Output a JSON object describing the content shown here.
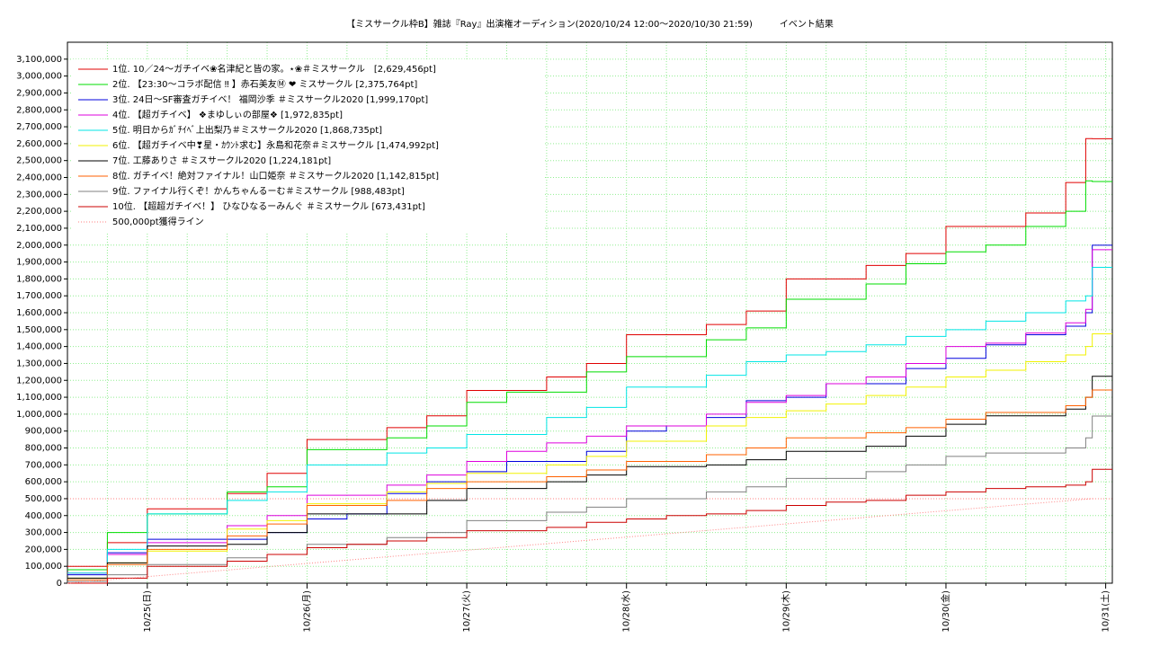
{
  "chart_data": {
    "type": "step",
    "title": "【ミスサークル枠B】雑誌『Ray』出演権オーディション(2020/10/24 12:00〜2020/10/30 21:59)　　　イベント結果",
    "x": [
      "2020-10-24 12:00",
      "2020-10-24 18:00",
      "2020-10-25 00:00",
      "2020-10-25 06:00",
      "2020-10-25 12:00",
      "2020-10-25 18:00",
      "2020-10-26 00:00",
      "2020-10-26 06:00",
      "2020-10-26 12:00",
      "2020-10-26 18:00",
      "2020-10-27 00:00",
      "2020-10-27 06:00",
      "2020-10-27 12:00",
      "2020-10-27 18:00",
      "2020-10-28 00:00",
      "2020-10-28 06:00",
      "2020-10-28 12:00",
      "2020-10-28 18:00",
      "2020-10-29 00:00",
      "2020-10-29 06:00",
      "2020-10-29 12:00",
      "2020-10-29 18:00",
      "2020-10-30 00:00",
      "2020-10-30 06:00",
      "2020-10-30 12:00",
      "2020-10-30 18:00",
      "2020-10-30 21:00",
      "2020-10-30 21:59"
    ],
    "xlim": [
      "2020-10-24 12:00",
      "2020-10-31 01:00"
    ],
    "xticks": [
      {
        "value": "2020-10-25 00:00",
        "label": "10/25(日)"
      },
      {
        "value": "2020-10-26 00:00",
        "label": "10/26(月)"
      },
      {
        "value": "2020-10-27 00:00",
        "label": "10/27(火)"
      },
      {
        "value": "2020-10-28 00:00",
        "label": "10/28(水)"
      },
      {
        "value": "2020-10-29 00:00",
        "label": "10/29(木)"
      },
      {
        "value": "2020-10-30 00:00",
        "label": "10/30(金)"
      },
      {
        "value": "2020-10-31 00:00",
        "label": "10/31(土)"
      }
    ],
    "x_minor_ticks": [
      "2020-10-24 18:00",
      "2020-10-25 06:00",
      "2020-10-25 12:00",
      "2020-10-25 18:00",
      "2020-10-26 06:00",
      "2020-10-26 12:00",
      "2020-10-26 18:00",
      "2020-10-27 06:00",
      "2020-10-27 12:00",
      "2020-10-27 18:00",
      "2020-10-28 06:00",
      "2020-10-28 12:00",
      "2020-10-28 18:00",
      "2020-10-29 06:00",
      "2020-10-29 12:00",
      "2020-10-29 18:00",
      "2020-10-30 06:00",
      "2020-10-30 12:00",
      "2020-10-30 18:00"
    ],
    "ylim": [
      0,
      3200000
    ],
    "yticks": [
      0,
      {
        "value": 100000,
        "label": "100,000"
      },
      {
        "value": 200000,
        "label": "200,000"
      },
      {
        "value": 300000,
        "label": "300,000"
      },
      {
        "value": 400000,
        "label": "400,000"
      },
      {
        "value": 500000,
        "label": "500,000"
      },
      {
        "value": 600000,
        "label": "600,000"
      },
      {
        "value": 700000,
        "label": "700,000"
      },
      {
        "value": 800000,
        "label": "800,000"
      },
      {
        "value": 900000,
        "label": "900,000"
      },
      {
        "value": 1000000,
        "label": "1,000,000"
      },
      {
        "value": 1100000,
        "label": "1,100,000"
      },
      {
        "value": 1200000,
        "label": "1,200,000"
      },
      {
        "value": 1300000,
        "label": "1,300,000"
      },
      {
        "value": 1400000,
        "label": "1,400,000"
      },
      {
        "value": 1500000,
        "label": "1,500,000"
      },
      {
        "value": 1600000,
        "label": "1,600,000"
      },
      {
        "value": 1700000,
        "label": "1,700,000"
      },
      {
        "value": 1800000,
        "label": "1,800,000"
      },
      {
        "value": 1900000,
        "label": "1,900,000"
      },
      {
        "value": 2000000,
        "label": "2,000,000"
      },
      {
        "value": 2100000,
        "label": "2,100,000"
      },
      {
        "value": 2200000,
        "label": "2,200,000"
      },
      {
        "value": 2300000,
        "label": "2,300,000"
      },
      {
        "value": 2400000,
        "label": "2,400,000"
      },
      {
        "value": 2500000,
        "label": "2,500,000"
      },
      {
        "value": 2600000,
        "label": "2,600,000"
      },
      {
        "value": 2700000,
        "label": "2,700,000"
      },
      {
        "value": 2800000,
        "label": "2,800,000"
      },
      {
        "value": 2900000,
        "label": "2,900,000"
      },
      {
        "value": 3000000,
        "label": "3,000,000"
      },
      {
        "value": 3100000,
        "label": "3,100,000"
      }
    ],
    "grid": true,
    "grid_color": "#90ee90",
    "legend": "upper left",
    "target_line": 500000,
    "target_color": "#ff8080",
    "series": [
      {
        "name": "1位. 10／24〜ガチイベ❀名津紀と皆の家。⋆❀＃ミスサークル　[2,629,456pt]",
        "color": "#e00000",
        "values": [
          100000,
          240000,
          440000,
          440000,
          530000,
          650000,
          850000,
          850000,
          920000,
          990000,
          1140000,
          1140000,
          1220000,
          1300000,
          1470000,
          1470000,
          1530000,
          1610000,
          1800000,
          1800000,
          1880000,
          1950000,
          2110000,
          2110000,
          2190000,
          2370000,
          2630000,
          2629456
        ]
      },
      {
        "name": "2位. 【23:30〜コラボ配信 ‼ 】赤石美友Ⓜ ❤ ミスサークル [2,375,764pt]",
        "color": "#00dd00",
        "values": [
          80000,
          300000,
          410000,
          410000,
          540000,
          570000,
          790000,
          790000,
          860000,
          930000,
          1070000,
          1130000,
          1130000,
          1250000,
          1340000,
          1340000,
          1440000,
          1510000,
          1680000,
          1680000,
          1770000,
          1890000,
          1960000,
          2000000,
          2110000,
          2200000,
          2380000,
          2375764
        ]
      },
      {
        "name": "3位. 24日〜SF審査ガチイベ！ 福岡沙季 ＃ミスサークル2020 [1,999,170pt]",
        "color": "#0000dd",
        "values": [
          50000,
          180000,
          260000,
          260000,
          260000,
          300000,
          380000,
          410000,
          530000,
          600000,
          660000,
          720000,
          720000,
          780000,
          900000,
          930000,
          980000,
          1080000,
          1100000,
          1180000,
          1180000,
          1270000,
          1330000,
          1410000,
          1470000,
          1520000,
          1600000,
          1999170
        ]
      },
      {
        "name": "4位. 【超ガチイベ】 ❖まゆしぃの部屋❖ [1,972,835pt]",
        "color": "#dd00dd",
        "values": [
          60000,
          170000,
          240000,
          240000,
          340000,
          400000,
          520000,
          520000,
          580000,
          640000,
          720000,
          780000,
          830000,
          870000,
          930000,
          930000,
          1000000,
          1070000,
          1110000,
          1180000,
          1220000,
          1300000,
          1400000,
          1420000,
          1480000,
          1540000,
          1620000,
          1972835
        ]
      },
      {
        "name": "5位. 明日からｶﾞﾁｲﾍﾞ上出梨乃＃ミスサークル2020 [1,868,735pt]",
        "color": "#00e5e5",
        "values": [
          60000,
          200000,
          410000,
          410000,
          490000,
          540000,
          700000,
          700000,
          770000,
          800000,
          880000,
          880000,
          980000,
          1040000,
          1160000,
          1160000,
          1230000,
          1310000,
          1350000,
          1370000,
          1410000,
          1460000,
          1500000,
          1550000,
          1600000,
          1670000,
          1700000,
          1868735
        ]
      },
      {
        "name": "6位. 【超ガチイベ中❣星・ｶｳﾝﾄ求む】永島和花奈＃ミスサークル [1,474,992pt]",
        "color": "#f2f200",
        "values": [
          30000,
          120000,
          190000,
          190000,
          320000,
          370000,
          470000,
          470000,
          540000,
          590000,
          650000,
          650000,
          700000,
          750000,
          840000,
          840000,
          930000,
          980000,
          1020000,
          1060000,
          1110000,
          1160000,
          1220000,
          1260000,
          1310000,
          1350000,
          1400000,
          1474992
        ]
      },
      {
        "name": "7位. 工藤ありさ ＃ミスサークル2020 [1,224,181pt]",
        "color": "#000000",
        "values": [
          30000,
          120000,
          220000,
          220000,
          230000,
          300000,
          410000,
          410000,
          410000,
          490000,
          560000,
          560000,
          600000,
          640000,
          690000,
          690000,
          700000,
          730000,
          780000,
          780000,
          810000,
          870000,
          940000,
          990000,
          990000,
          1030000,
          1100000,
          1224181
        ]
      },
      {
        "name": "8位. ガチイベ！絶対ファイナル！山口姫奈 ＃ミスサークル2020 [1,142,815pt]",
        "color": "#ff6000",
        "values": [
          20000,
          110000,
          200000,
          200000,
          280000,
          350000,
          460000,
          460000,
          490000,
          560000,
          600000,
          600000,
          630000,
          670000,
          720000,
          720000,
          760000,
          800000,
          860000,
          860000,
          890000,
          920000,
          970000,
          1010000,
          1010000,
          1050000,
          1100000,
          1142815
        ]
      },
      {
        "name": "9位. ファイナル行くぞ！かんちゃんるーむ＃ミスサークル [988,483pt]",
        "color": "#808080",
        "values": [
          10000,
          50000,
          110000,
          110000,
          150000,
          170000,
          230000,
          230000,
          270000,
          300000,
          370000,
          370000,
          420000,
          450000,
          500000,
          500000,
          540000,
          570000,
          620000,
          620000,
          660000,
          700000,
          750000,
          770000,
          770000,
          800000,
          860000,
          988483
        ]
      },
      {
        "name": "10位. 【超超ガチイベ！】 ひなひなるーみんぐ ＃ミスサークル [673,431pt]",
        "color": "#cc0000",
        "values": [
          0,
          30000,
          100000,
          100000,
          130000,
          170000,
          210000,
          230000,
          250000,
          270000,
          310000,
          310000,
          330000,
          360000,
          380000,
          400000,
          410000,
          430000,
          460000,
          480000,
          490000,
          520000,
          540000,
          560000,
          570000,
          580000,
          600000,
          673431
        ]
      },
      {
        "name": "500,000pt獲得ライン",
        "color": "#ff8080",
        "dashed": true,
        "x": [
          "2020-10-24 12:00",
          "2020-10-30 21:59"
        ],
        "values": [
          0,
          500000
        ]
      }
    ]
  }
}
